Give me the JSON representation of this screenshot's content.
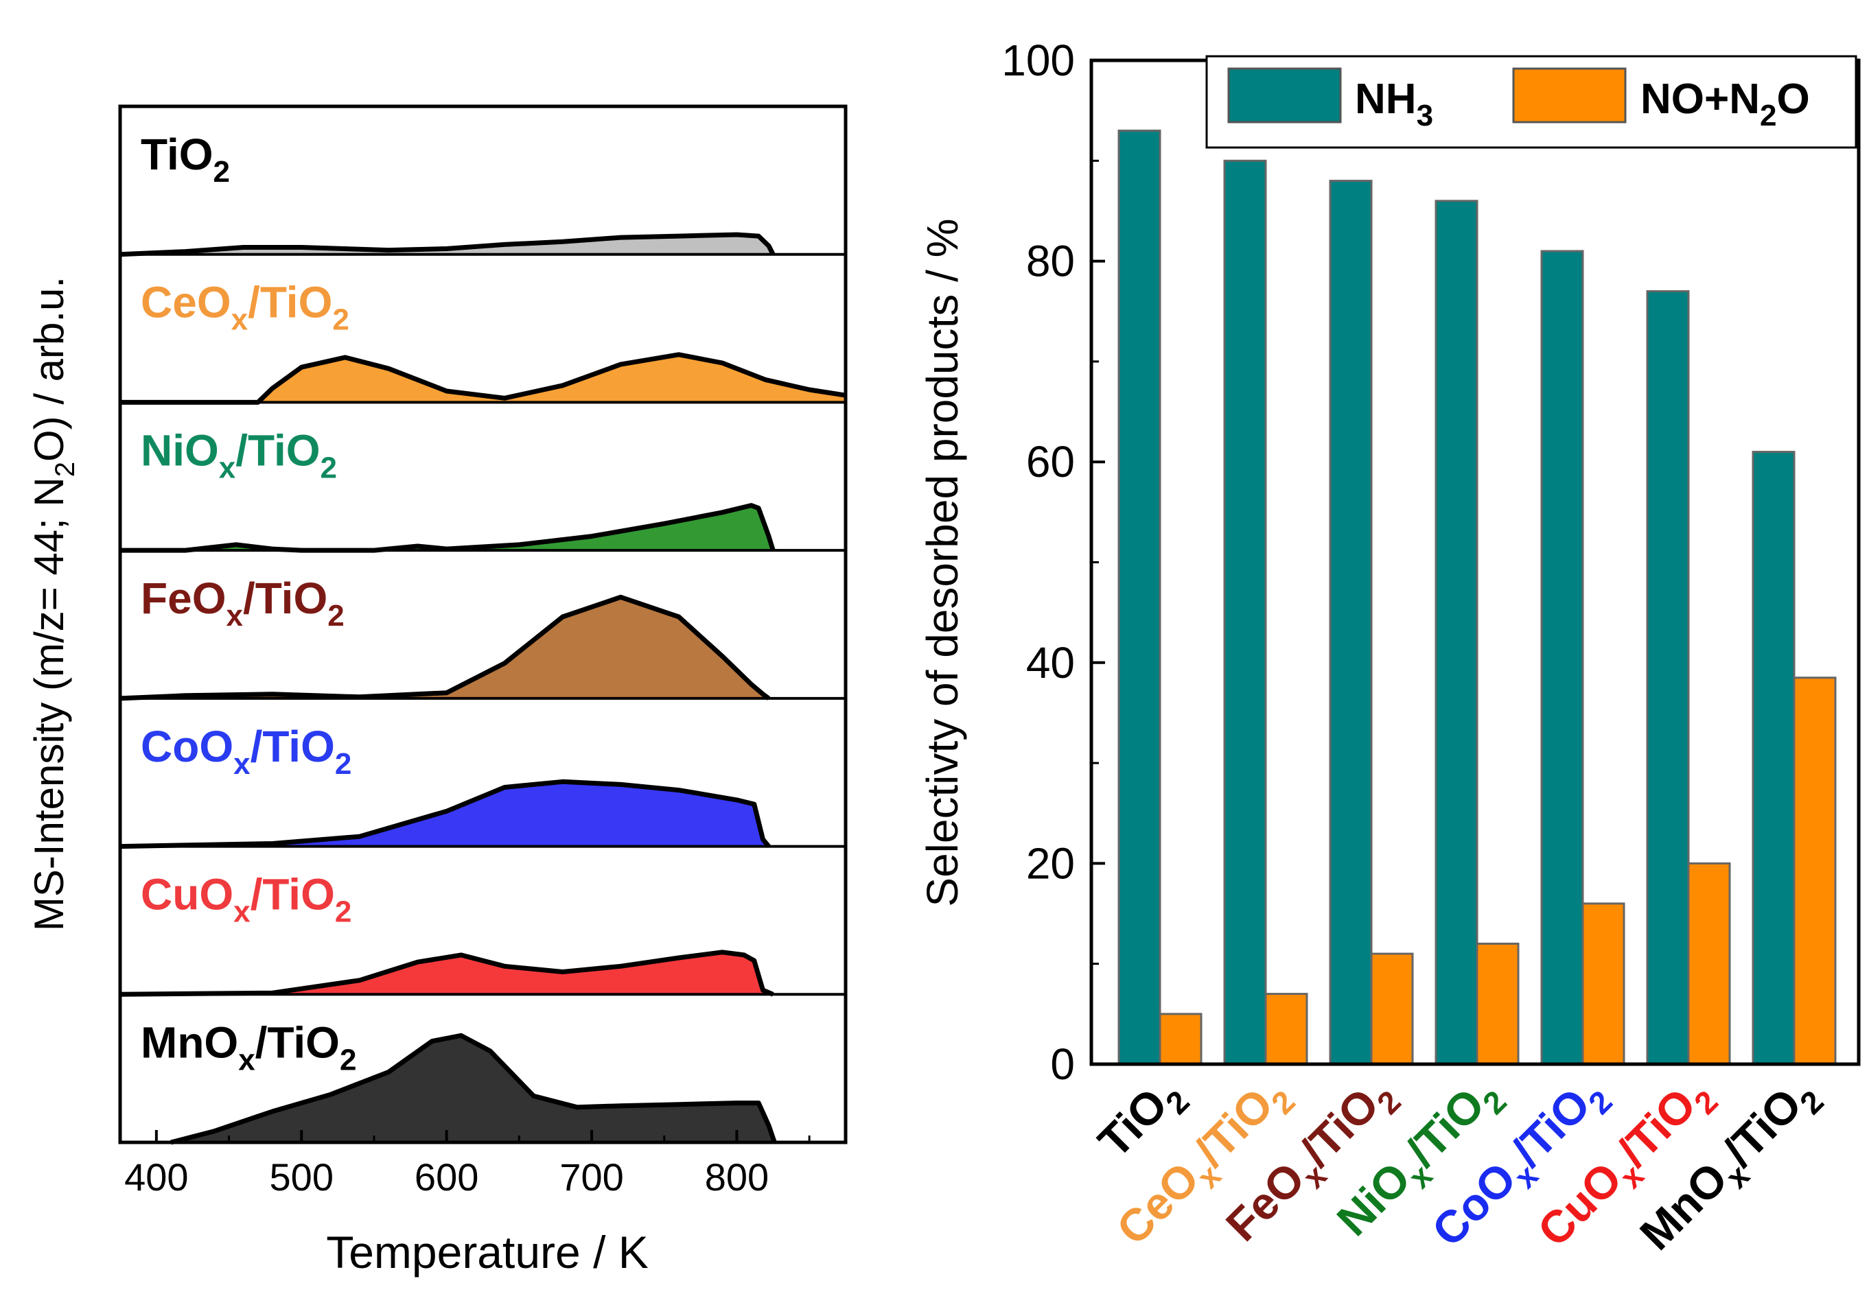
{
  "chart_data": [
    {
      "type": "area",
      "title": "",
      "xlabel": "Temperature / K",
      "ylabel": "MS-Intensity (m/z= 44; N2O) / arb.u.",
      "xlim": [
        375,
        875
      ],
      "x_ticks": [
        "400",
        "500",
        "600",
        "700",
        "800"
      ],
      "panels": [
        {
          "name": "TiO2",
          "label_main": "TiO",
          "label_sub": "2",
          "label_mid": "",
          "label_sub2": "",
          "fill": "#c0c0c0",
          "label_color": "#000000",
          "x": [
            375,
            420,
            460,
            500,
            560,
            600,
            640,
            680,
            720,
            760,
            800,
            815,
            822,
            825
          ],
          "y": [
            0,
            0.02,
            0.05,
            0.05,
            0.03,
            0.04,
            0.07,
            0.09,
            0.12,
            0.13,
            0.14,
            0.13,
            0.06,
            0
          ]
        },
        {
          "name": "CeOx/TiO2",
          "label_main": "CeO",
          "label_sub": "x",
          "label_mid": "/TiO",
          "label_sub2": "2",
          "fill": "#f7a035",
          "label_color": "#f39a3c",
          "x": [
            375,
            470,
            480,
            500,
            530,
            560,
            600,
            640,
            680,
            720,
            760,
            790,
            820,
            850,
            875
          ],
          "y": [
            0,
            0,
            0.1,
            0.25,
            0.32,
            0.24,
            0.08,
            0.03,
            0.12,
            0.27,
            0.34,
            0.28,
            0.16,
            0.09,
            0.05
          ]
        },
        {
          "name": "NiOx/TiO2",
          "label_main": "NiO",
          "label_sub": "x",
          "label_mid": "/TiO",
          "label_sub2": "2",
          "fill": "#339a33",
          "label_color": "#0f8a5f",
          "x": [
            375,
            420,
            455,
            480,
            500,
            550,
            580,
            600,
            650,
            700,
            750,
            790,
            810,
            815,
            822,
            825
          ],
          "y": [
            0,
            0,
            0.04,
            0.01,
            0,
            0,
            0.03,
            0.01,
            0.04,
            0.1,
            0.19,
            0.27,
            0.32,
            0.3,
            0.1,
            0
          ]
        },
        {
          "name": "FeOx/TiO2",
          "label_main": "FeO",
          "label_sub": "x",
          "label_mid": "/TiO",
          "label_sub2": "2",
          "fill": "#b87840",
          "label_color": "#7b1a14",
          "x": [
            375,
            420,
            480,
            540,
            600,
            640,
            680,
            720,
            760,
            790,
            810,
            818,
            822
          ],
          "y": [
            0,
            0.02,
            0.03,
            0.01,
            0.04,
            0.25,
            0.58,
            0.72,
            0.58,
            0.3,
            0.1,
            0.03,
            0
          ]
        },
        {
          "name": "CoOx/TiO2",
          "label_main": "CoO",
          "label_sub": "x",
          "label_mid": "/TiO",
          "label_sub2": "2",
          "fill": "#3838f5",
          "label_color": "#2a3cf0",
          "x": [
            375,
            480,
            540,
            600,
            640,
            680,
            720,
            760,
            800,
            812,
            818,
            822
          ],
          "y": [
            0,
            0.02,
            0.07,
            0.25,
            0.42,
            0.46,
            0.44,
            0.4,
            0.33,
            0.3,
            0.05,
            0
          ]
        },
        {
          "name": "CuOx/TiO2",
          "label_main": "CuO",
          "label_sub": "x",
          "label_mid": "/TiO",
          "label_sub2": "2",
          "fill": "#f5393b",
          "label_color": "#ef3a3e",
          "x": [
            375,
            480,
            540,
            580,
            610,
            640,
            680,
            720,
            760,
            790,
            805,
            812,
            818,
            825
          ],
          "y": [
            0,
            0.01,
            0.1,
            0.23,
            0.28,
            0.2,
            0.16,
            0.2,
            0.26,
            0.3,
            0.28,
            0.24,
            0.03,
            0
          ]
        },
        {
          "name": "MnOx/TiO2",
          "label_main": "MnO",
          "label_sub": "x",
          "label_mid": "/TiO",
          "label_sub2": "2",
          "fill": "#333333",
          "label_color": "#000000",
          "x": [
            410,
            440,
            480,
            520,
            560,
            590,
            610,
            630,
            660,
            690,
            720,
            760,
            800,
            815,
            822,
            826
          ],
          "y": [
            0,
            0.08,
            0.22,
            0.34,
            0.5,
            0.72,
            0.76,
            0.65,
            0.33,
            0.25,
            0.26,
            0.27,
            0.28,
            0.28,
            0.12,
            0
          ]
        }
      ]
    },
    {
      "type": "bar",
      "title": "",
      "xlabel": "",
      "ylabel": "Selectivty of desorbed products / %",
      "ylim": [
        0,
        100
      ],
      "y_ticks": [
        "0",
        "20",
        "40",
        "60",
        "80",
        "100"
      ],
      "categories": [
        {
          "name": "TiO2",
          "main": "TiO",
          "sub": "2",
          "mid": "",
          "sub2": "",
          "color": "#000000"
        },
        {
          "name": "CeOx/TiO2",
          "main": "CeO",
          "sub": "x",
          "mid": "/TiO",
          "sub2": "2",
          "color": "#f39a3c"
        },
        {
          "name": "FeOx/TiO2",
          "main": "FeO",
          "sub": "x",
          "mid": "/TiO",
          "sub2": "2",
          "color": "#7b1a14"
        },
        {
          "name": "NiOx/TiO2",
          "main": "NiO",
          "sub": "x",
          "mid": "/TiO",
          "sub2": "2",
          "color": "#0f7a1f"
        },
        {
          "name": "CoOx/TiO2",
          "main": "CoO",
          "sub": "x",
          "mid": "/TiO",
          "sub2": "2",
          "color": "#1a2cf0"
        },
        {
          "name": "CuOx/TiO2",
          "main": "CuO",
          "sub": "x",
          "mid": "/TiO",
          "sub2": "2",
          "color": "#f01a1a"
        },
        {
          "name": "MnOx/TiO2",
          "main": "MnO",
          "sub": "x",
          "mid": "/TiO",
          "sub2": "2",
          "color": "#000000"
        }
      ],
      "series": [
        {
          "name": "NH3",
          "label_main": "NH",
          "label_sub": "3",
          "label_tail": "",
          "color": "#008080",
          "values": [
            93,
            90,
            88,
            86,
            81,
            77,
            61
          ]
        },
        {
          "name": "NO+N2O",
          "label_main": "NO+N",
          "label_sub": "2",
          "label_tail": "O",
          "color": "#ff8c00",
          "values": [
            5,
            7,
            11,
            12,
            16,
            20,
            38.5
          ]
        }
      ],
      "legend": "top-right"
    }
  ]
}
